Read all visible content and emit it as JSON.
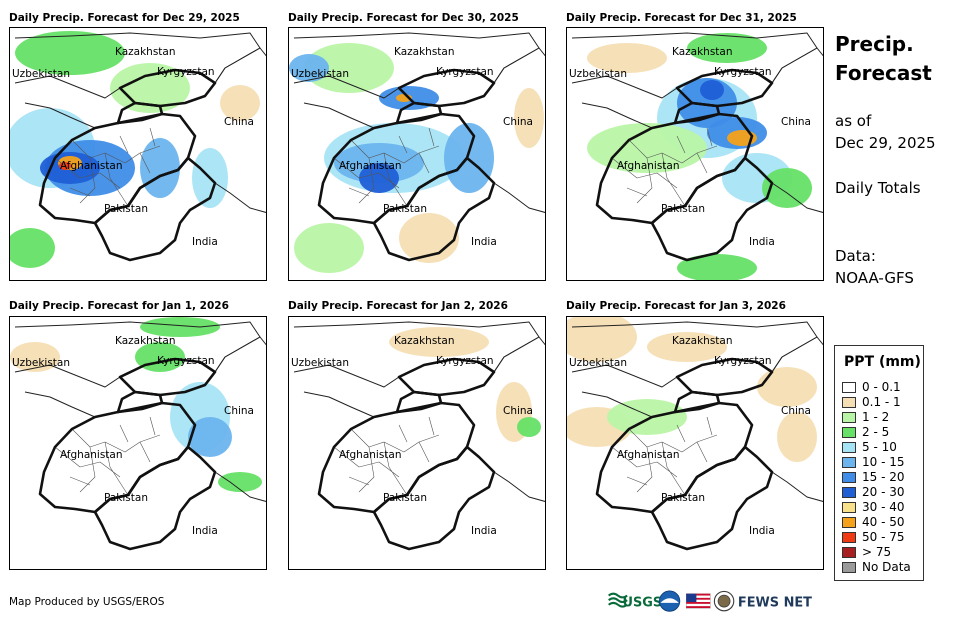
{
  "panels": [
    {
      "title": "Daily Precip. Forecast for Dec 29, 2025"
    },
    {
      "title": "Daily Precip. Forecast for Dec 30, 2025"
    },
    {
      "title": "Daily Precip. Forecast for Dec 31, 2025"
    },
    {
      "title": "Daily Precip. Forecast for Jan 1, 2026"
    },
    {
      "title": "Daily Precip. Forecast for Jan 2, 2026"
    },
    {
      "title": "Daily Precip. Forecast for Jan 3, 2026"
    }
  ],
  "countries": {
    "kazakhstan": "Kazakhstan",
    "uzbekistan": "Uzbekistan",
    "kyrgyzstan": "Kyrgyzstan",
    "china": "China",
    "afghanistan": "Afghanistan",
    "pakistan": "Pakistan",
    "india": "India"
  },
  "sidebar": {
    "title_line1": "Precip.",
    "title_line2": "Forecast",
    "asof_line1": "as of",
    "asof_line2": "Dec 29, 2025",
    "totals": "Daily Totals",
    "data_line1": "Data:",
    "data_line2": "NOAA-GFS"
  },
  "legend": {
    "title": "PPT (mm)",
    "items": [
      {
        "label": "0 - 0.1",
        "color": "#ffffff"
      },
      {
        "label": "0.1 - 1",
        "color": "#f5deb3"
      },
      {
        "label": "1 - 2",
        "color": "#b9f5a6"
      },
      {
        "label": "2 - 5",
        "color": "#66e066"
      },
      {
        "label": "5 - 10",
        "color": "#a6e4f5"
      },
      {
        "label": "10 - 15",
        "color": "#6bb4ee"
      },
      {
        "label": "15 - 20",
        "color": "#3f8de8"
      },
      {
        "label": "20 - 30",
        "color": "#1f5fd6"
      },
      {
        "label": "30 - 40",
        "color": "#f9e08a"
      },
      {
        "label": "40 - 50",
        "color": "#f5a21a"
      },
      {
        "label": "50 - 75",
        "color": "#f03a14"
      },
      {
        "label": "> 75",
        "color": "#a81f1f"
      },
      {
        "label": "No Data",
        "color": "#9a9a9a"
      }
    ]
  },
  "footer": {
    "credit": "Map Produced by USGS/EROS",
    "usgs": "USGS",
    "fewsnet": "FEWS NET"
  }
}
